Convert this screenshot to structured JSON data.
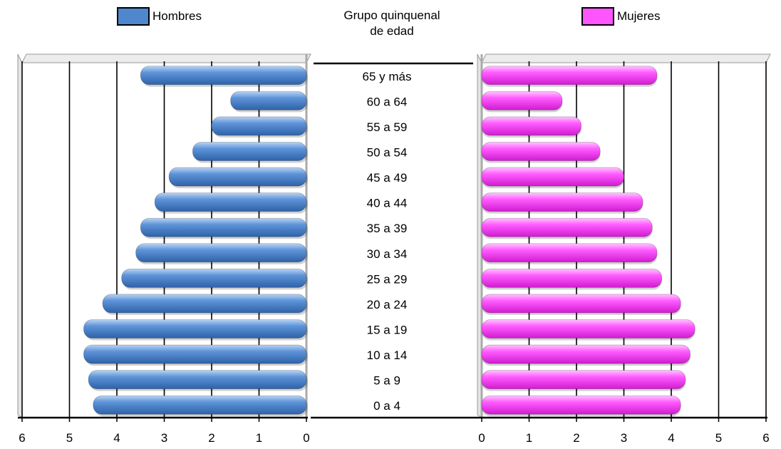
{
  "chart_data": {
    "type": "bar",
    "subtype": "population-pyramid",
    "center_title": [
      "Grupo quinquenal",
      "de edad"
    ],
    "categories": [
      "65 y más",
      "60 a 64",
      "55 a 59",
      "50 a 54",
      "45 a 49",
      "40 a 44",
      "35 a 39",
      "30 a 34",
      "25 a 29",
      "20 a 24",
      "15 a 19",
      "10 a 14",
      "5 a 9",
      "0 a 4"
    ],
    "series": [
      {
        "name": "Hombres",
        "color": "#4f87cf",
        "values": [
          3.5,
          1.6,
          2.0,
          2.4,
          2.9,
          3.2,
          3.5,
          3.6,
          3.9,
          4.3,
          4.7,
          4.7,
          4.6,
          4.5
        ]
      },
      {
        "name": "Mujeres",
        "color": "#ff55ff",
        "values": [
          3.7,
          1.7,
          2.1,
          2.5,
          3.0,
          3.4,
          3.6,
          3.7,
          3.8,
          4.2,
          4.5,
          4.4,
          4.3,
          4.2
        ]
      }
    ],
    "xlim": [
      0,
      6
    ],
    "x_ticks": [
      "0",
      "1",
      "2",
      "3",
      "4",
      "5",
      "6"
    ],
    "grid": true
  }
}
